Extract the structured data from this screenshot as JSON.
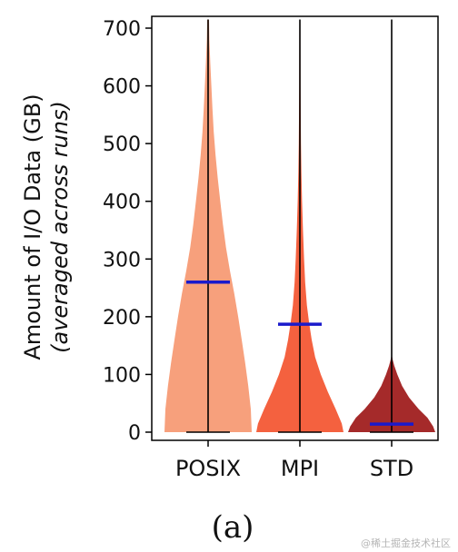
{
  "chart_data": {
    "type": "violin",
    "categories": [
      "POSIX",
      "MPI",
      "STD"
    ],
    "ylabel_line1": "Amount of I/O Data (GB)",
    "ylabel_line2": "(averaged across runs)",
    "ylim": [
      0,
      715
    ],
    "yticks": [
      0,
      100,
      200,
      300,
      400,
      500,
      600,
      700
    ],
    "grid": false,
    "series": [
      {
        "color": "#f7a07c",
        "mean": 260,
        "min": 0,
        "max": 715,
        "density": [
          [
            0,
            1.0
          ],
          [
            40,
            0.98
          ],
          [
            80,
            0.92
          ],
          [
            120,
            0.85
          ],
          [
            160,
            0.77
          ],
          [
            200,
            0.69
          ],
          [
            240,
            0.6
          ],
          [
            280,
            0.5
          ],
          [
            320,
            0.41
          ],
          [
            360,
            0.34
          ],
          [
            400,
            0.28
          ],
          [
            440,
            0.22
          ],
          [
            480,
            0.17
          ],
          [
            520,
            0.13
          ],
          [
            560,
            0.1
          ],
          [
            600,
            0.075
          ],
          [
            640,
            0.05
          ],
          [
            680,
            0.03
          ],
          [
            715,
            0.02
          ]
        ]
      },
      {
        "color": "#f4613f",
        "mean": 187,
        "min": 0,
        "max": 715,
        "density": [
          [
            0,
            1.0
          ],
          [
            15,
            0.96
          ],
          [
            40,
            0.82
          ],
          [
            70,
            0.64
          ],
          [
            100,
            0.48
          ],
          [
            130,
            0.35
          ],
          [
            160,
            0.27
          ],
          [
            190,
            0.21
          ],
          [
            220,
            0.16
          ],
          [
            260,
            0.12
          ],
          [
            300,
            0.095
          ],
          [
            350,
            0.07
          ],
          [
            400,
            0.05
          ],
          [
            450,
            0.035
          ],
          [
            500,
            0.025
          ],
          [
            600,
            0.015
          ],
          [
            715,
            0.01
          ]
        ]
      },
      {
        "color": "#a52a2a",
        "mean": 14,
        "min": 0,
        "max": 715,
        "density": [
          [
            0,
            1.0
          ],
          [
            10,
            0.95
          ],
          [
            25,
            0.82
          ],
          [
            40,
            0.62
          ],
          [
            60,
            0.4
          ],
          [
            80,
            0.24
          ],
          [
            100,
            0.13
          ],
          [
            115,
            0.06
          ],
          [
            125,
            0.025
          ],
          [
            135,
            0.0
          ]
        ]
      }
    ],
    "mean_color": "#1a1acc",
    "caption": "(a)"
  },
  "watermark": "@稀土掘金技术社区"
}
